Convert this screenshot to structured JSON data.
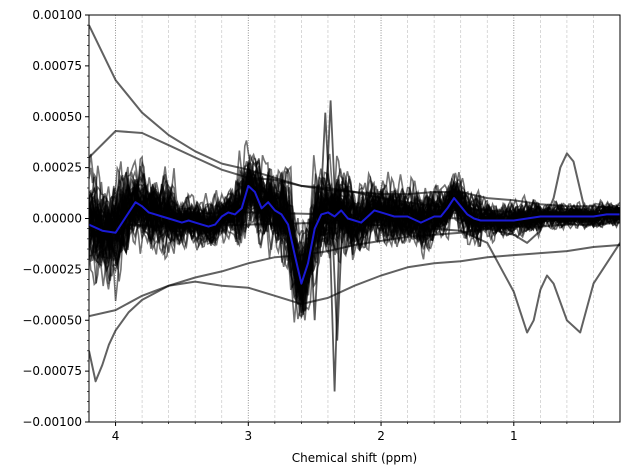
{
  "chart_data": {
    "type": "line",
    "title": "",
    "xlabel": "Chemical shift (ppm)",
    "ylabel": "",
    "x_axis_reversed": true,
    "xlim": [
      4.2,
      0.2
    ],
    "ylim": [
      -0.001,
      0.001
    ],
    "x_ticks": [
      4,
      3,
      2,
      1
    ],
    "x_tick_labels": [
      "4",
      "3",
      "2",
      "1"
    ],
    "y_ticks": [
      -0.001,
      -0.00075,
      -0.0005,
      -0.00025,
      0.0,
      0.00025,
      0.0005,
      0.00075,
      0.001
    ],
    "y_tick_labels": [
      "−0.00100",
      "−0.00075",
      "−0.00050",
      "−0.00025",
      "0.00000",
      "0.00025",
      "0.00050",
      "0.00075",
      "0.00100"
    ],
    "vertical_gridlines_ppm": [
      4.0,
      3.8,
      3.6,
      3.4,
      3.2,
      3.0,
      2.8,
      2.6,
      2.4,
      2.2,
      2.0,
      1.8,
      1.6,
      1.4,
      1.2,
      1.0,
      0.8,
      0.6,
      0.4
    ],
    "colors": {
      "individual_spectra": "#000000",
      "mean_spectrum": "#1a1ad6"
    },
    "series": [
      {
        "role": "mean",
        "x": [
          4.2,
          4.1,
          4.0,
          3.95,
          3.9,
          3.85,
          3.8,
          3.75,
          3.7,
          3.65,
          3.6,
          3.55,
          3.5,
          3.45,
          3.4,
          3.35,
          3.3,
          3.25,
          3.2,
          3.15,
          3.1,
          3.05,
          3.0,
          2.95,
          2.9,
          2.85,
          2.8,
          2.75,
          2.7,
          2.65,
          2.6,
          2.55,
          2.5,
          2.45,
          2.4,
          2.35,
          2.3,
          2.25,
          2.2,
          2.15,
          2.1,
          2.05,
          2.0,
          1.95,
          1.9,
          1.8,
          1.7,
          1.6,
          1.55,
          1.5,
          1.45,
          1.4,
          1.35,
          1.3,
          1.25,
          1.2,
          1.1,
          1.0,
          0.9,
          0.8,
          0.7,
          0.6,
          0.5,
          0.4,
          0.3,
          0.2
        ],
        "y": [
          -3e-05,
          -6e-05,
          -7e-05,
          -2e-05,
          3e-05,
          8e-05,
          6e-05,
          3e-05,
          2e-05,
          1e-05,
          0.0,
          -1e-05,
          -2e-05,
          -1e-05,
          -2e-05,
          -3e-05,
          -4e-05,
          -3e-05,
          1e-05,
          3e-05,
          2e-05,
          5e-05,
          0.00016,
          0.00013,
          5e-05,
          8e-05,
          4e-05,
          2e-05,
          -3e-05,
          -0.00018,
          -0.00032,
          -0.00022,
          -5e-05,
          2e-05,
          3e-05,
          1e-05,
          4e-05,
          0.0,
          -1e-05,
          -2e-05,
          1e-05,
          4e-05,
          3e-05,
          2e-05,
          1e-05,
          1e-05,
          -2e-05,
          1e-05,
          1e-05,
          5e-05,
          0.0001,
          6e-05,
          2e-05,
          0.0,
          -1e-05,
          -1e-05,
          -1e-05,
          -1e-05,
          0.0,
          1e-05,
          1e-05,
          1e-05,
          1e-05,
          1e-05,
          2e-05,
          2e-05
        ]
      },
      {
        "role": "outlier-upper-decay",
        "x": [
          4.2,
          4.0,
          3.8,
          3.6,
          3.4,
          3.2,
          3.0,
          2.8,
          2.6,
          2.4,
          2.2,
          2.0,
          1.8,
          1.6,
          1.4,
          1.2,
          1.0,
          0.8,
          0.6,
          0.4,
          0.2
        ],
        "y": [
          0.00095,
          0.00068,
          0.00052,
          0.00041,
          0.00033,
          0.00027,
          0.00024,
          0.0002,
          0.00016,
          0.00015,
          0.00013,
          0.0001,
          8e-05,
          6e-05,
          5e-05,
          4e-05,
          3e-05,
          3e-05,
          3e-05,
          2e-05,
          2e-05
        ]
      },
      {
        "role": "outlier-upper",
        "x": [
          4.2,
          4.0,
          3.8,
          3.6,
          3.4,
          3.2,
          3.0,
          2.8,
          2.6,
          2.4,
          2.2,
          2.0,
          1.8,
          1.6,
          1.4,
          1.2,
          1.0,
          0.8,
          0.6,
          0.4,
          0.2
        ],
        "y": [
          0.0003,
          0.00043,
          0.00042,
          0.00036,
          0.0003,
          0.00024,
          0.0002,
          0.00019,
          0.00016,
          0.00014,
          0.00013,
          0.00012,
          0.00012,
          0.00013,
          0.00013,
          0.0001,
          9e-05,
          7e-05,
          6e-05,
          6e-05,
          5e-05
        ]
      },
      {
        "role": "outlier-lower-decay",
        "x": [
          4.2,
          4.15,
          4.1,
          4.05,
          4.0,
          3.9,
          3.8,
          3.6,
          3.4,
          3.2,
          3.0,
          2.8,
          2.6,
          2.4,
          2.2,
          2.0,
          1.8,
          1.6,
          1.4,
          1.2,
          1.0,
          0.8,
          0.6,
          0.4,
          0.2
        ],
        "y": [
          -0.00065,
          -0.0008,
          -0.00072,
          -0.00062,
          -0.00055,
          -0.00046,
          -0.0004,
          -0.00033,
          -0.00029,
          -0.00026,
          -0.00022,
          -0.00019,
          -0.00018,
          -0.00016,
          -0.00013,
          -0.00011,
          -9e-05,
          -8e-05,
          -7e-05,
          -5e-05,
          -4e-05,
          -4e-05,
          -3e-05,
          -3e-05,
          -2e-05
        ]
      },
      {
        "role": "outlier-lower",
        "x": [
          4.2,
          4.0,
          3.8,
          3.6,
          3.4,
          3.2,
          3.0,
          2.8,
          2.6,
          2.4,
          2.2,
          2.0,
          1.8,
          1.6,
          1.4,
          1.2,
          1.0,
          0.8,
          0.6,
          0.4,
          0.2
        ],
        "y": [
          -0.00048,
          -0.00045,
          -0.00038,
          -0.00033,
          -0.00031,
          -0.00033,
          -0.00034,
          -0.00038,
          -0.00042,
          -0.00039,
          -0.00033,
          -0.00028,
          -0.00024,
          -0.00022,
          -0.00021,
          -0.00019,
          -0.00018,
          -0.00017,
          -0.00016,
          -0.00014,
          -0.00013
        ]
      },
      {
        "role": "outlier-dip",
        "x": [
          4.2,
          3.6,
          3.0,
          2.4,
          1.8,
          1.4,
          1.2,
          1.1,
          1.0,
          0.95,
          0.9,
          0.85,
          0.8,
          0.75,
          0.7,
          0.6,
          0.5,
          0.4,
          0.2
        ],
        "y": [
          -2e-05,
          -4e-05,
          -3e-05,
          -2e-05,
          -4e-05,
          -6e-05,
          -0.00012,
          -0.00024,
          -0.00036,
          -0.00046,
          -0.00056,
          -0.0005,
          -0.00035,
          -0.00028,
          -0.00032,
          -0.0005,
          -0.00056,
          -0.00032,
          -0.00012
        ]
      },
      {
        "role": "outlier-bump",
        "x": [
          4.2,
          3.6,
          3.0,
          2.4,
          1.8,
          1.4,
          1.2,
          1.0,
          0.9,
          0.8,
          0.7,
          0.65,
          0.6,
          0.55,
          0.5,
          0.45,
          0.4,
          0.3,
          0.2
        ],
        "y": [
          1e-05,
          2e-05,
          3e-05,
          2e-05,
          1e-05,
          0.0,
          -5e-05,
          -8e-05,
          -0.00012,
          -6e-05,
          0.0001,
          0.00025,
          0.00032,
          0.00028,
          0.00014,
          0.0,
          -4e-05,
          -2e-05,
          0.0
        ]
      }
    ]
  }
}
